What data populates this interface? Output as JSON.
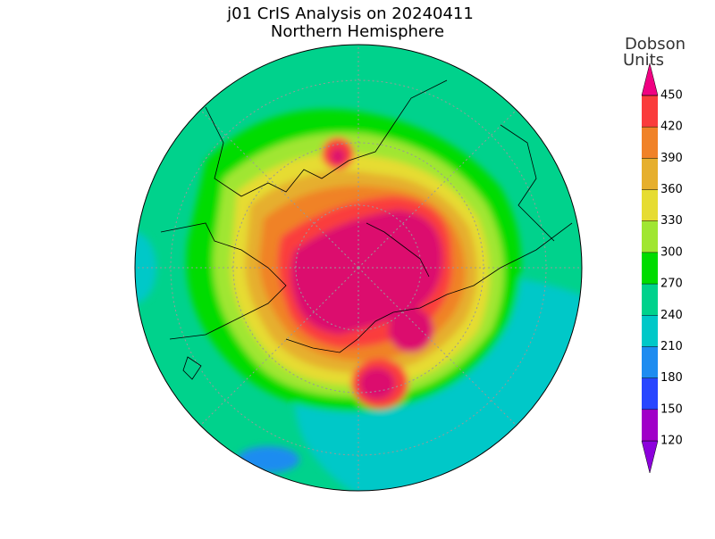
{
  "header": {
    "title": "j01 CrIS Analysis on 20240411",
    "subtitle": "Northern Hemisphere"
  },
  "colorbar": {
    "label": [
      "Dobson",
      "Units"
    ],
    "ticks": [
      120,
      150,
      180,
      210,
      240,
      270,
      300,
      330,
      360,
      390,
      420,
      450
    ],
    "colors": [
      "#8c00dc",
      "#a000c8",
      "#2846ff",
      "#1e8cf0",
      "#00c8c8",
      "#00d28c",
      "#00dc00",
      "#a0e632",
      "#e6dc32",
      "#e6af2d",
      "#f08228",
      "#fa3c3c",
      "#f00082"
    ]
  }
}
